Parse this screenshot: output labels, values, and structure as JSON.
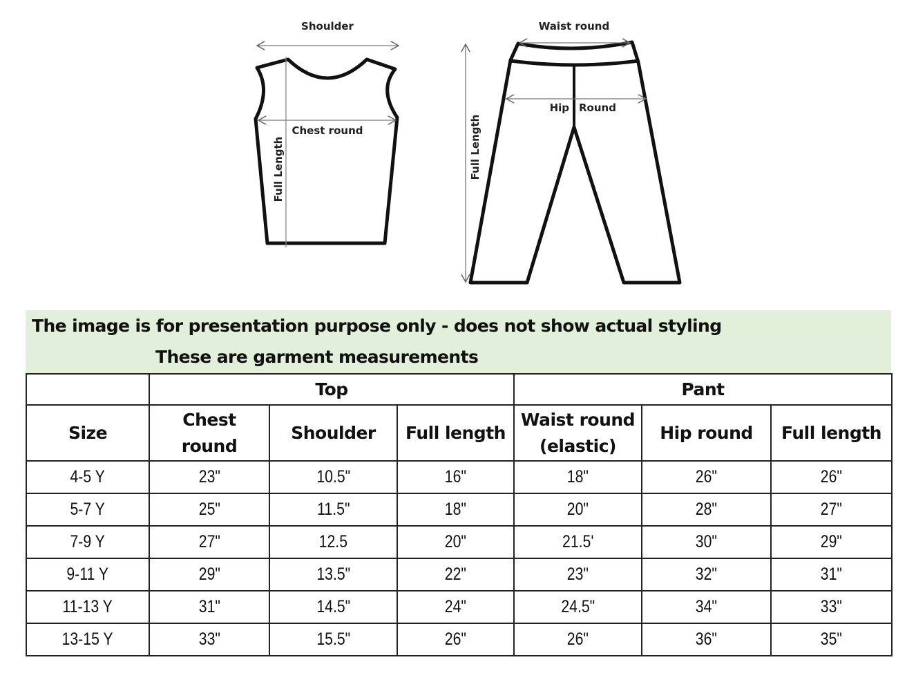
{
  "diagram": {
    "top_labels": {
      "shoulder": "Shoulder",
      "chest_round": "Chest round",
      "full_length": "Full Length"
    },
    "pant_labels": {
      "waist_round": "Waist round",
      "hip": "Hip",
      "round": "Round",
      "full_length": "Full Length"
    }
  },
  "banner": {
    "line1": "The image is for presentation purpose only - does not show actual styling",
    "line2": "These are garment measurements"
  },
  "table": {
    "group_headers": {
      "top": "Top",
      "pant": "Pant"
    },
    "columns": [
      "Size",
      "Chest round",
      "Shoulder",
      "Full length",
      "Waist round (elastic)",
      "Hip round",
      "Full length"
    ],
    "rows": [
      [
        "4-5 Y",
        "23\"",
        "10.5\"",
        "16\"",
        "18\"",
        "26\"",
        "26\""
      ],
      [
        "5-7 Y",
        "25\"",
        "11.5\"",
        "18\"",
        "20\"",
        "28\"",
        "27\""
      ],
      [
        "7-9 Y",
        "27\"",
        "12.5",
        "20\"",
        "21.5'",
        "30\"",
        "29\""
      ],
      [
        "9-11 Y",
        "29\"",
        "13.5\"",
        "22\"",
        "23\"",
        "32\"",
        "31\""
      ],
      [
        "11-13 Y",
        "31\"",
        "14.5\"",
        "24\"",
        "24.5\"",
        "34\"",
        "33\""
      ],
      [
        "13-15 Y",
        "33\"",
        "15.5\"",
        "26\"",
        "26\"",
        "36\"",
        "35\""
      ]
    ]
  },
  "colors": {
    "banner_bg": "#e2efda",
    "border": "#222222"
  }
}
